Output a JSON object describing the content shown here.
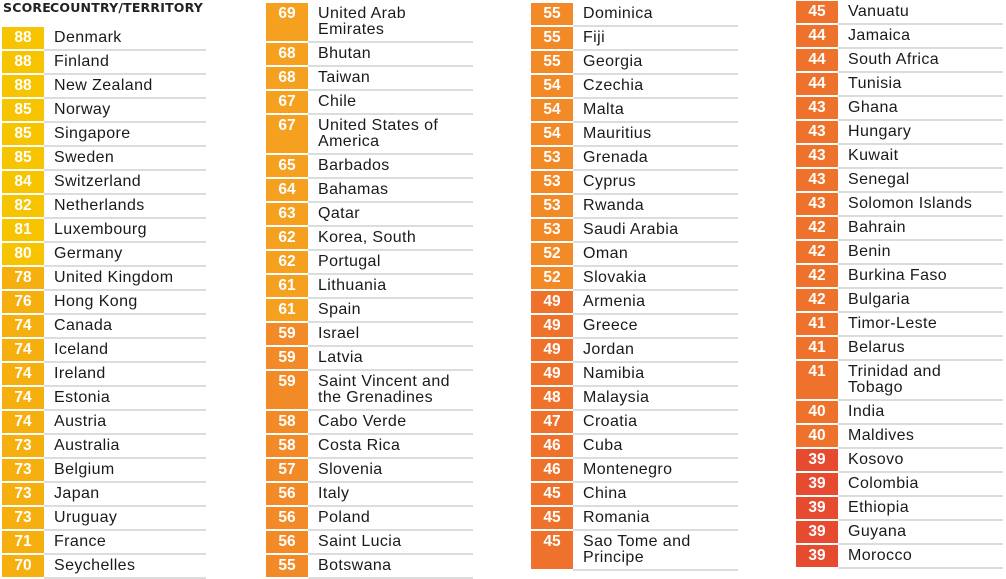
{
  "header": {
    "score_label": "SCORE",
    "country_label": "COUNTRY/TERRITORY"
  },
  "color_scale": [
    {
      "min": 80,
      "color": "#f6c400"
    },
    {
      "min": 70,
      "color": "#f5b00f"
    },
    {
      "min": 60,
      "color": "#f5a01f"
    },
    {
      "min": 50,
      "color": "#f28a27"
    },
    {
      "min": 40,
      "color": "#ee722b"
    },
    {
      "min": 0,
      "color": "#e64a2f"
    }
  ],
  "columns": [
    {
      "rows": [
        {
          "score": "88",
          "country": "Denmark"
        },
        {
          "score": "88",
          "country": "Finland"
        },
        {
          "score": "88",
          "country": "New Zealand"
        },
        {
          "score": "85",
          "country": "Norway"
        },
        {
          "score": "85",
          "country": "Singapore"
        },
        {
          "score": "85",
          "country": "Sweden"
        },
        {
          "score": "84",
          "country": "Switzerland"
        },
        {
          "score": "82",
          "country": "Netherlands"
        },
        {
          "score": "81",
          "country": "Luxembourg"
        },
        {
          "score": "80",
          "country": "Germany"
        },
        {
          "score": "78",
          "country": "United Kingdom"
        },
        {
          "score": "76",
          "country": "Hong Kong"
        },
        {
          "score": "74",
          "country": "Canada"
        },
        {
          "score": "74",
          "country": "Iceland"
        },
        {
          "score": "74",
          "country": "Ireland"
        },
        {
          "score": "74",
          "country": "Estonia"
        },
        {
          "score": "74",
          "country": "Austria"
        },
        {
          "score": "73",
          "country": "Australia"
        },
        {
          "score": "73",
          "country": "Belgium"
        },
        {
          "score": "73",
          "country": "Japan"
        },
        {
          "score": "73",
          "country": "Uruguay"
        },
        {
          "score": "71",
          "country": "France"
        },
        {
          "score": "70",
          "country": "Seychelles"
        }
      ]
    },
    {
      "rows": [
        {
          "score": "69",
          "country": "United Arab\nEmirates"
        },
        {
          "score": "68",
          "country": "Bhutan"
        },
        {
          "score": "68",
          "country": "Taiwan"
        },
        {
          "score": "67",
          "country": "Chile"
        },
        {
          "score": "67",
          "country": "United States of\nAmerica"
        },
        {
          "score": "65",
          "country": "Barbados"
        },
        {
          "score": "64",
          "country": "Bahamas"
        },
        {
          "score": "63",
          "country": "Qatar"
        },
        {
          "score": "62",
          "country": "Korea, South"
        },
        {
          "score": "62",
          "country": "Portugal"
        },
        {
          "score": "61",
          "country": "Lithuania"
        },
        {
          "score": "61",
          "country": "Spain"
        },
        {
          "score": "59",
          "country": "Israel"
        },
        {
          "score": "59",
          "country": "Latvia"
        },
        {
          "score": "59",
          "country": "Saint Vincent and\nthe Grenadines"
        },
        {
          "score": "58",
          "country": "Cabo Verde"
        },
        {
          "score": "58",
          "country": "Costa Rica"
        },
        {
          "score": "57",
          "country": "Slovenia"
        },
        {
          "score": "56",
          "country": "Italy"
        },
        {
          "score": "56",
          "country": "Poland"
        },
        {
          "score": "56",
          "country": "Saint Lucia"
        },
        {
          "score": "55",
          "country": "Botswana"
        }
      ]
    },
    {
      "rows": [
        {
          "score": "55",
          "country": "Dominica"
        },
        {
          "score": "55",
          "country": "Fiji"
        },
        {
          "score": "55",
          "country": "Georgia"
        },
        {
          "score": "54",
          "country": "Czechia"
        },
        {
          "score": "54",
          "country": "Malta"
        },
        {
          "score": "54",
          "country": "Mauritius"
        },
        {
          "score": "53",
          "country": "Grenada"
        },
        {
          "score": "53",
          "country": "Cyprus"
        },
        {
          "score": "53",
          "country": "Rwanda"
        },
        {
          "score": "53",
          "country": "Saudi Arabia"
        },
        {
          "score": "52",
          "country": "Oman"
        },
        {
          "score": "52",
          "country": "Slovakia"
        },
        {
          "score": "49",
          "country": "Armenia"
        },
        {
          "score": "49",
          "country": "Greece"
        },
        {
          "score": "49",
          "country": "Jordan"
        },
        {
          "score": "49",
          "country": "Namibia"
        },
        {
          "score": "48",
          "country": "Malaysia"
        },
        {
          "score": "47",
          "country": "Croatia"
        },
        {
          "score": "46",
          "country": "Cuba"
        },
        {
          "score": "46",
          "country": "Montenegro"
        },
        {
          "score": "45",
          "country": "China"
        },
        {
          "score": "45",
          "country": "Romania"
        },
        {
          "score": "45",
          "country": "Sao Tome and\nPrincipe"
        }
      ]
    },
    {
      "rows": [
        {
          "score": "45",
          "country": "Vanuatu"
        },
        {
          "score": "44",
          "country": "Jamaica"
        },
        {
          "score": "44",
          "country": "South Africa"
        },
        {
          "score": "44",
          "country": "Tunisia"
        },
        {
          "score": "43",
          "country": "Ghana"
        },
        {
          "score": "43",
          "country": "Hungary"
        },
        {
          "score": "43",
          "country": "Kuwait"
        },
        {
          "score": "43",
          "country": "Senegal"
        },
        {
          "score": "43",
          "country": "Solomon Islands"
        },
        {
          "score": "42",
          "country": "Bahrain"
        },
        {
          "score": "42",
          "country": "Benin"
        },
        {
          "score": "42",
          "country": "Burkina Faso"
        },
        {
          "score": "42",
          "country": "Bulgaria"
        },
        {
          "score": "41",
          "country": "Timor-Leste"
        },
        {
          "score": "41",
          "country": "Belarus"
        },
        {
          "score": "41",
          "country": "Trinidad and\nTobago"
        },
        {
          "score": "40",
          "country": "India"
        },
        {
          "score": "40",
          "country": "Maldives"
        },
        {
          "score": "39",
          "country": "Kosovo"
        },
        {
          "score": "39",
          "country": "Colombia"
        },
        {
          "score": "39",
          "country": "Ethiopia"
        },
        {
          "score": "39",
          "country": "Guyana"
        },
        {
          "score": "39",
          "country": "Morocco"
        }
      ]
    }
  ]
}
